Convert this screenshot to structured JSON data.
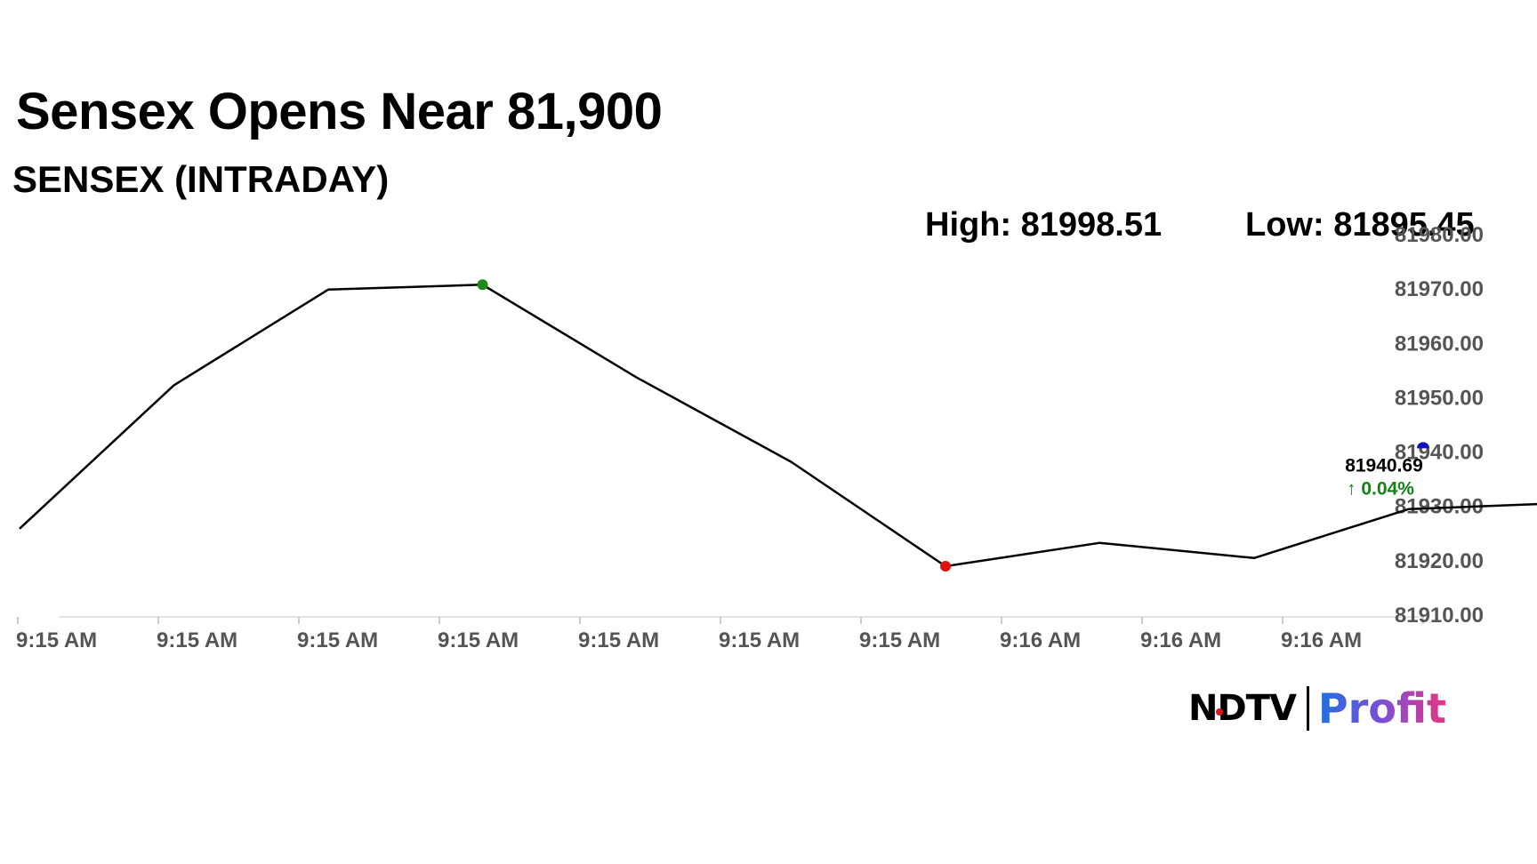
{
  "header": {
    "title": "Sensex Opens Near 81,900",
    "subtitle": "SENSEX (INTRADAY)",
    "high_text": "High: 81998.51",
    "low_text": "Low: 81895.45"
  },
  "logo": {
    "ndtv": "NDTV",
    "profit": "Profit"
  },
  "chart_data": {
    "type": "line",
    "title": "SENSEX (INTRADAY)",
    "xlabel": "",
    "ylabel": "",
    "x_tick_labels": [
      "9:15 AM",
      "9:15 AM",
      "9:15 AM",
      "9:15 AM",
      "9:15 AM",
      "9:15 AM",
      "9:15 AM",
      "9:16 AM",
      "9:16 AM",
      "9:16 AM"
    ],
    "y_tick_labels": [
      "81980.00",
      "81970.00",
      "81960.00",
      "81950.00",
      "81940.00",
      "81930.00",
      "81920.00",
      "81910.00"
    ],
    "ylim": [
      81910,
      81980
    ],
    "series": [
      {
        "values": [
          81925.9,
          81952.3,
          81969.9,
          81970.8,
          81953.7,
          81938.2,
          81919.0,
          81923.3,
          81920.5,
          81929.5,
          81930.6,
          81940.69
        ]
      }
    ],
    "highlights": {
      "high_index": 3,
      "low_index": 6,
      "last_index": 11
    },
    "last_value_label": "81940.69",
    "change_label": "0.04%",
    "change_arrow": "↑",
    "colors": {
      "line": "#000000",
      "high_marker": "#1a8a1a",
      "low_marker": "#e01010",
      "last_marker": "#1010c0",
      "change_text": "#168016",
      "axis_text": "#555555",
      "grid": "#dddddd"
    },
    "grid": false,
    "legend": "none"
  }
}
